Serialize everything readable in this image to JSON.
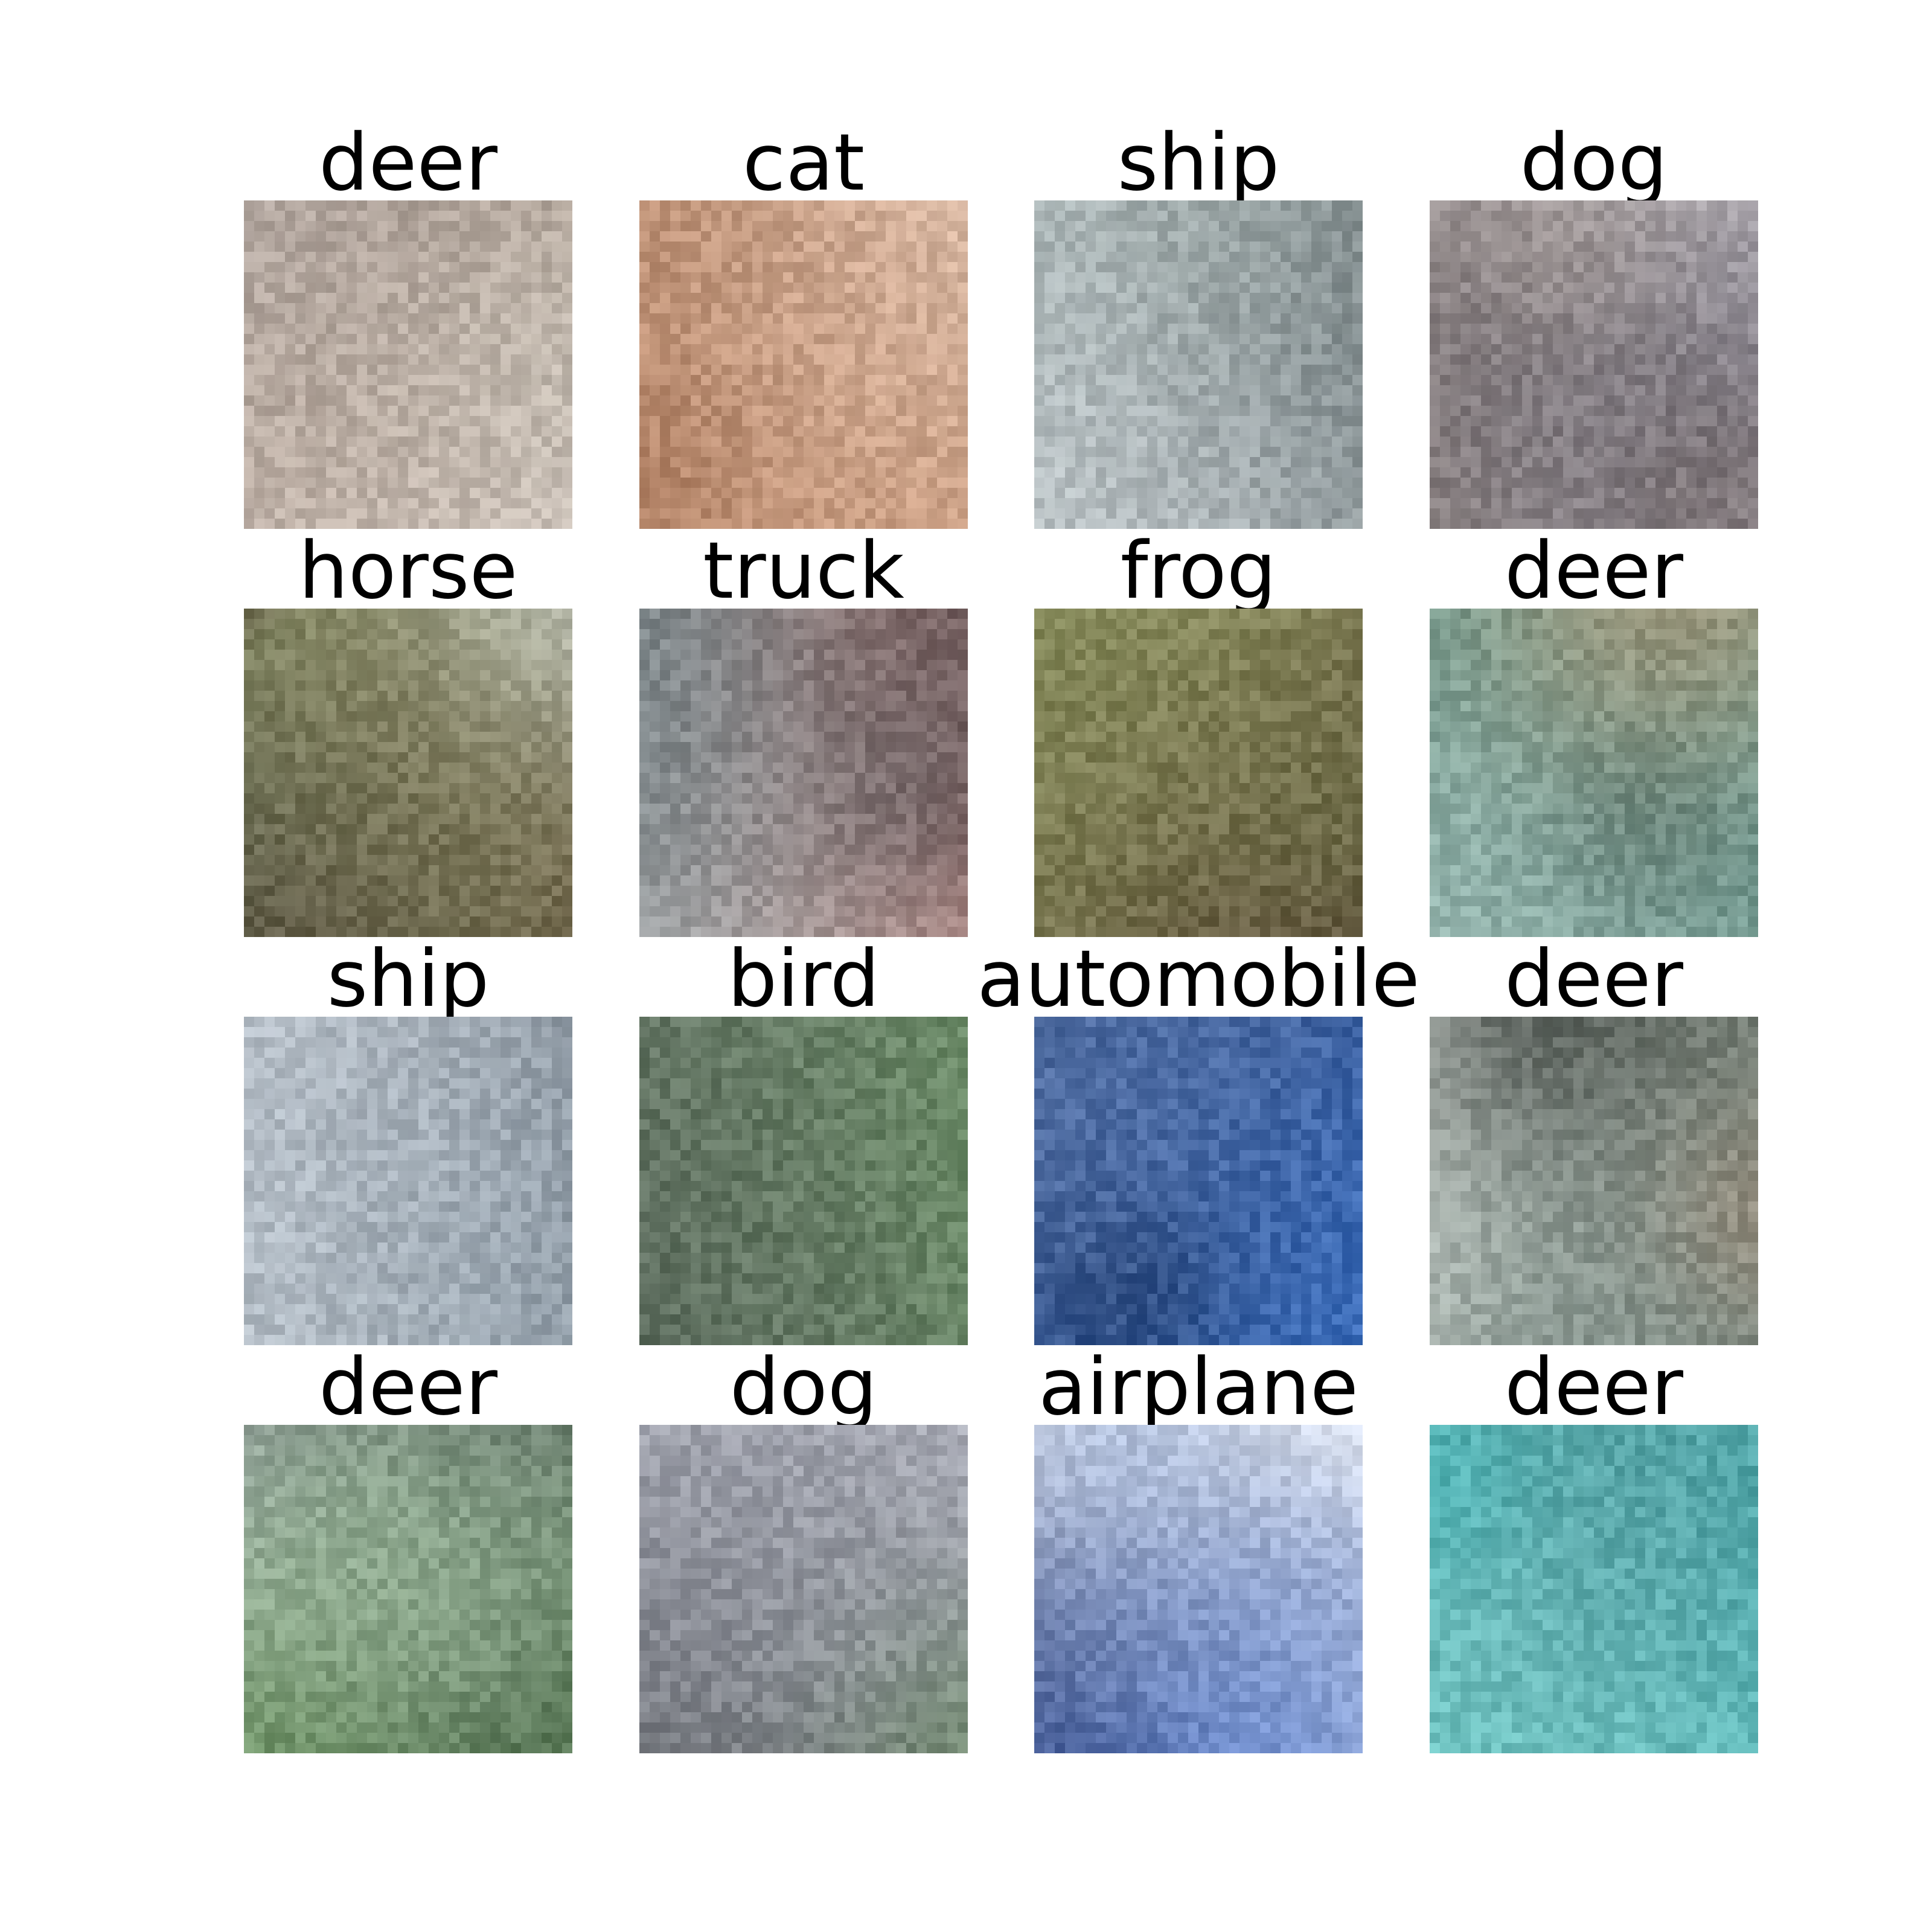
{
  "figure": {
    "cells": [
      {
        "label": "deer",
        "palette": [
          "#2a2e33",
          "#6b5a4e",
          "#a8917d",
          "#d8d1cf",
          "#4f4a3a",
          "#e6efe8"
        ]
      },
      {
        "label": "cat",
        "palette": [
          "#2b1a17",
          "#c98a63",
          "#8e5a3d",
          "#e2b08f",
          "#f2e0d2",
          "#44302a"
        ]
      },
      {
        "label": "ship",
        "palette": [
          "#e6e8f2",
          "#f0f1f6",
          "#1f2a33",
          "#c7ccd0",
          "#8fa39e",
          "#a6b3ad"
        ]
      },
      {
        "label": "dog",
        "palette": [
          "#4b3a33",
          "#d9cfc8",
          "#2d2b3d",
          "#b7a99c",
          "#ebe6e9",
          "#7b6a60"
        ]
      },
      {
        "label": "horse",
        "palette": [
          "#39291f",
          "#7a9a55",
          "#dfe6e6",
          "#1f1e24",
          "#a6b783",
          "#5d4635"
        ]
      },
      {
        "label": "truck",
        "palette": [
          "#1c2328",
          "#d8e2e2",
          "#6c7d82",
          "#3b4a52",
          "#a63a2c",
          "#9aa7ab"
        ]
      },
      {
        "label": "frog",
        "palette": [
          "#7d8b55",
          "#a0463b",
          "#6b5a3e",
          "#e6e0e4",
          "#9aa16a",
          "#4f3a2f"
        ]
      },
      {
        "label": "deer",
        "palette": [
          "#5f8b7e",
          "#9aa88f",
          "#c38a5a",
          "#2e3a33",
          "#d2ded8",
          "#7aa5a0"
        ]
      },
      {
        "label": "ship",
        "palette": [
          "#dde2ea",
          "#eef0f4",
          "#2a3a4a",
          "#1b2a55",
          "#c9d2d8",
          "#8a9aa6"
        ]
      },
      {
        "label": "bird",
        "palette": [
          "#7cc26e",
          "#a8b1a6",
          "#6a7f6a",
          "#c9cbd6",
          "#3b3d40",
          "#8fa38c"
        ]
      },
      {
        "label": "automobile",
        "palette": [
          "#2d5fb8",
          "#1e3e7a",
          "#4a84d8",
          "#0f1e3a",
          "#7aa6e2",
          "#e9eef8"
        ]
      },
      {
        "label": "deer",
        "palette": [
          "#3f4a3d",
          "#8fa08a",
          "#c08a66",
          "#e6eae8",
          "#1c211e",
          "#6e8a84"
        ]
      },
      {
        "label": "deer",
        "palette": [
          "#dfe3ee",
          "#f2f3f6",
          "#2a3a2a",
          "#4f7a3f",
          "#1d2a22",
          "#6aa35a"
        ]
      },
      {
        "label": "dog",
        "palette": [
          "#5f9a4a",
          "#c8cad6",
          "#3a3e3a",
          "#8e7a5a",
          "#e6e3ea",
          "#2a2f3a"
        ]
      },
      {
        "label": "airplane",
        "palette": [
          "#d6dceb",
          "#e9eef6",
          "#2a56b8",
          "#4e7ee0",
          "#9fb3d8",
          "#1c2f6a"
        ]
      },
      {
        "label": "deer",
        "palette": [
          "#36b6ba",
          "#67c9c6",
          "#9bd6d3",
          "#2b3c4a",
          "#8a9aa6",
          "#b9c7a9"
        ]
      }
    ]
  }
}
